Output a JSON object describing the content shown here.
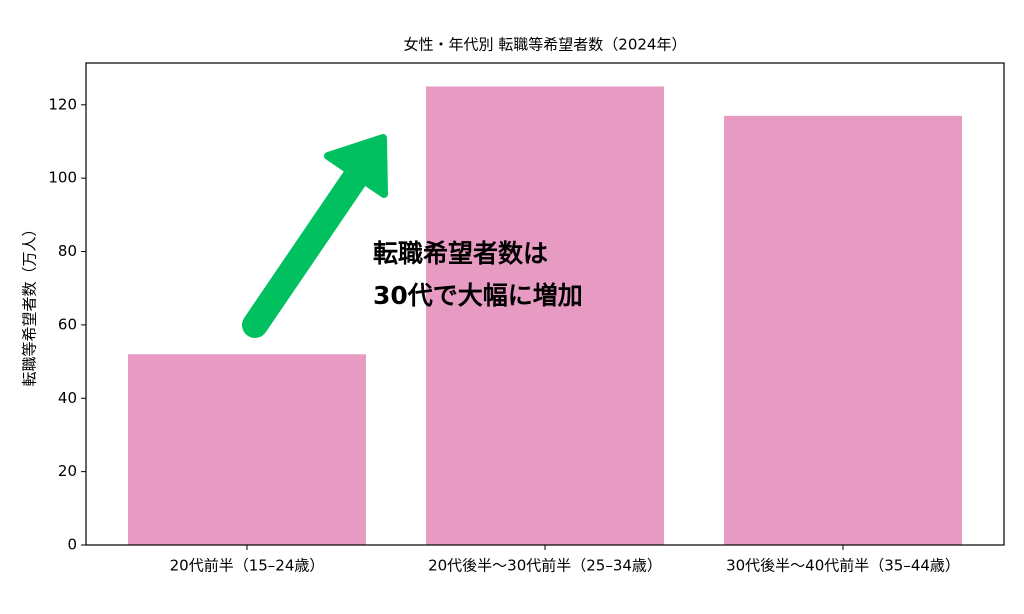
{
  "chart_data": {
    "type": "bar",
    "title": "女性・年代別 転職等希望者数（2024年）",
    "y_label": "転職等希望者数（万人）",
    "categories": [
      "20代前半（15–24歳）",
      "20代後半〜30代前半（25–34歳）",
      "30代後半〜40代前半（35–44歳）"
    ],
    "values": [
      52,
      125,
      117
    ],
    "color": "#e89bc2",
    "ylim": [
      0,
      131.4
    ],
    "yticks": [
      0,
      20,
      40,
      60,
      80,
      100,
      120
    ],
    "annotation": [
      "転職希望者数は",
      "30代で大幅に増加"
    ],
    "annotation_color": "#000000",
    "arrow_color": "#00c060"
  }
}
